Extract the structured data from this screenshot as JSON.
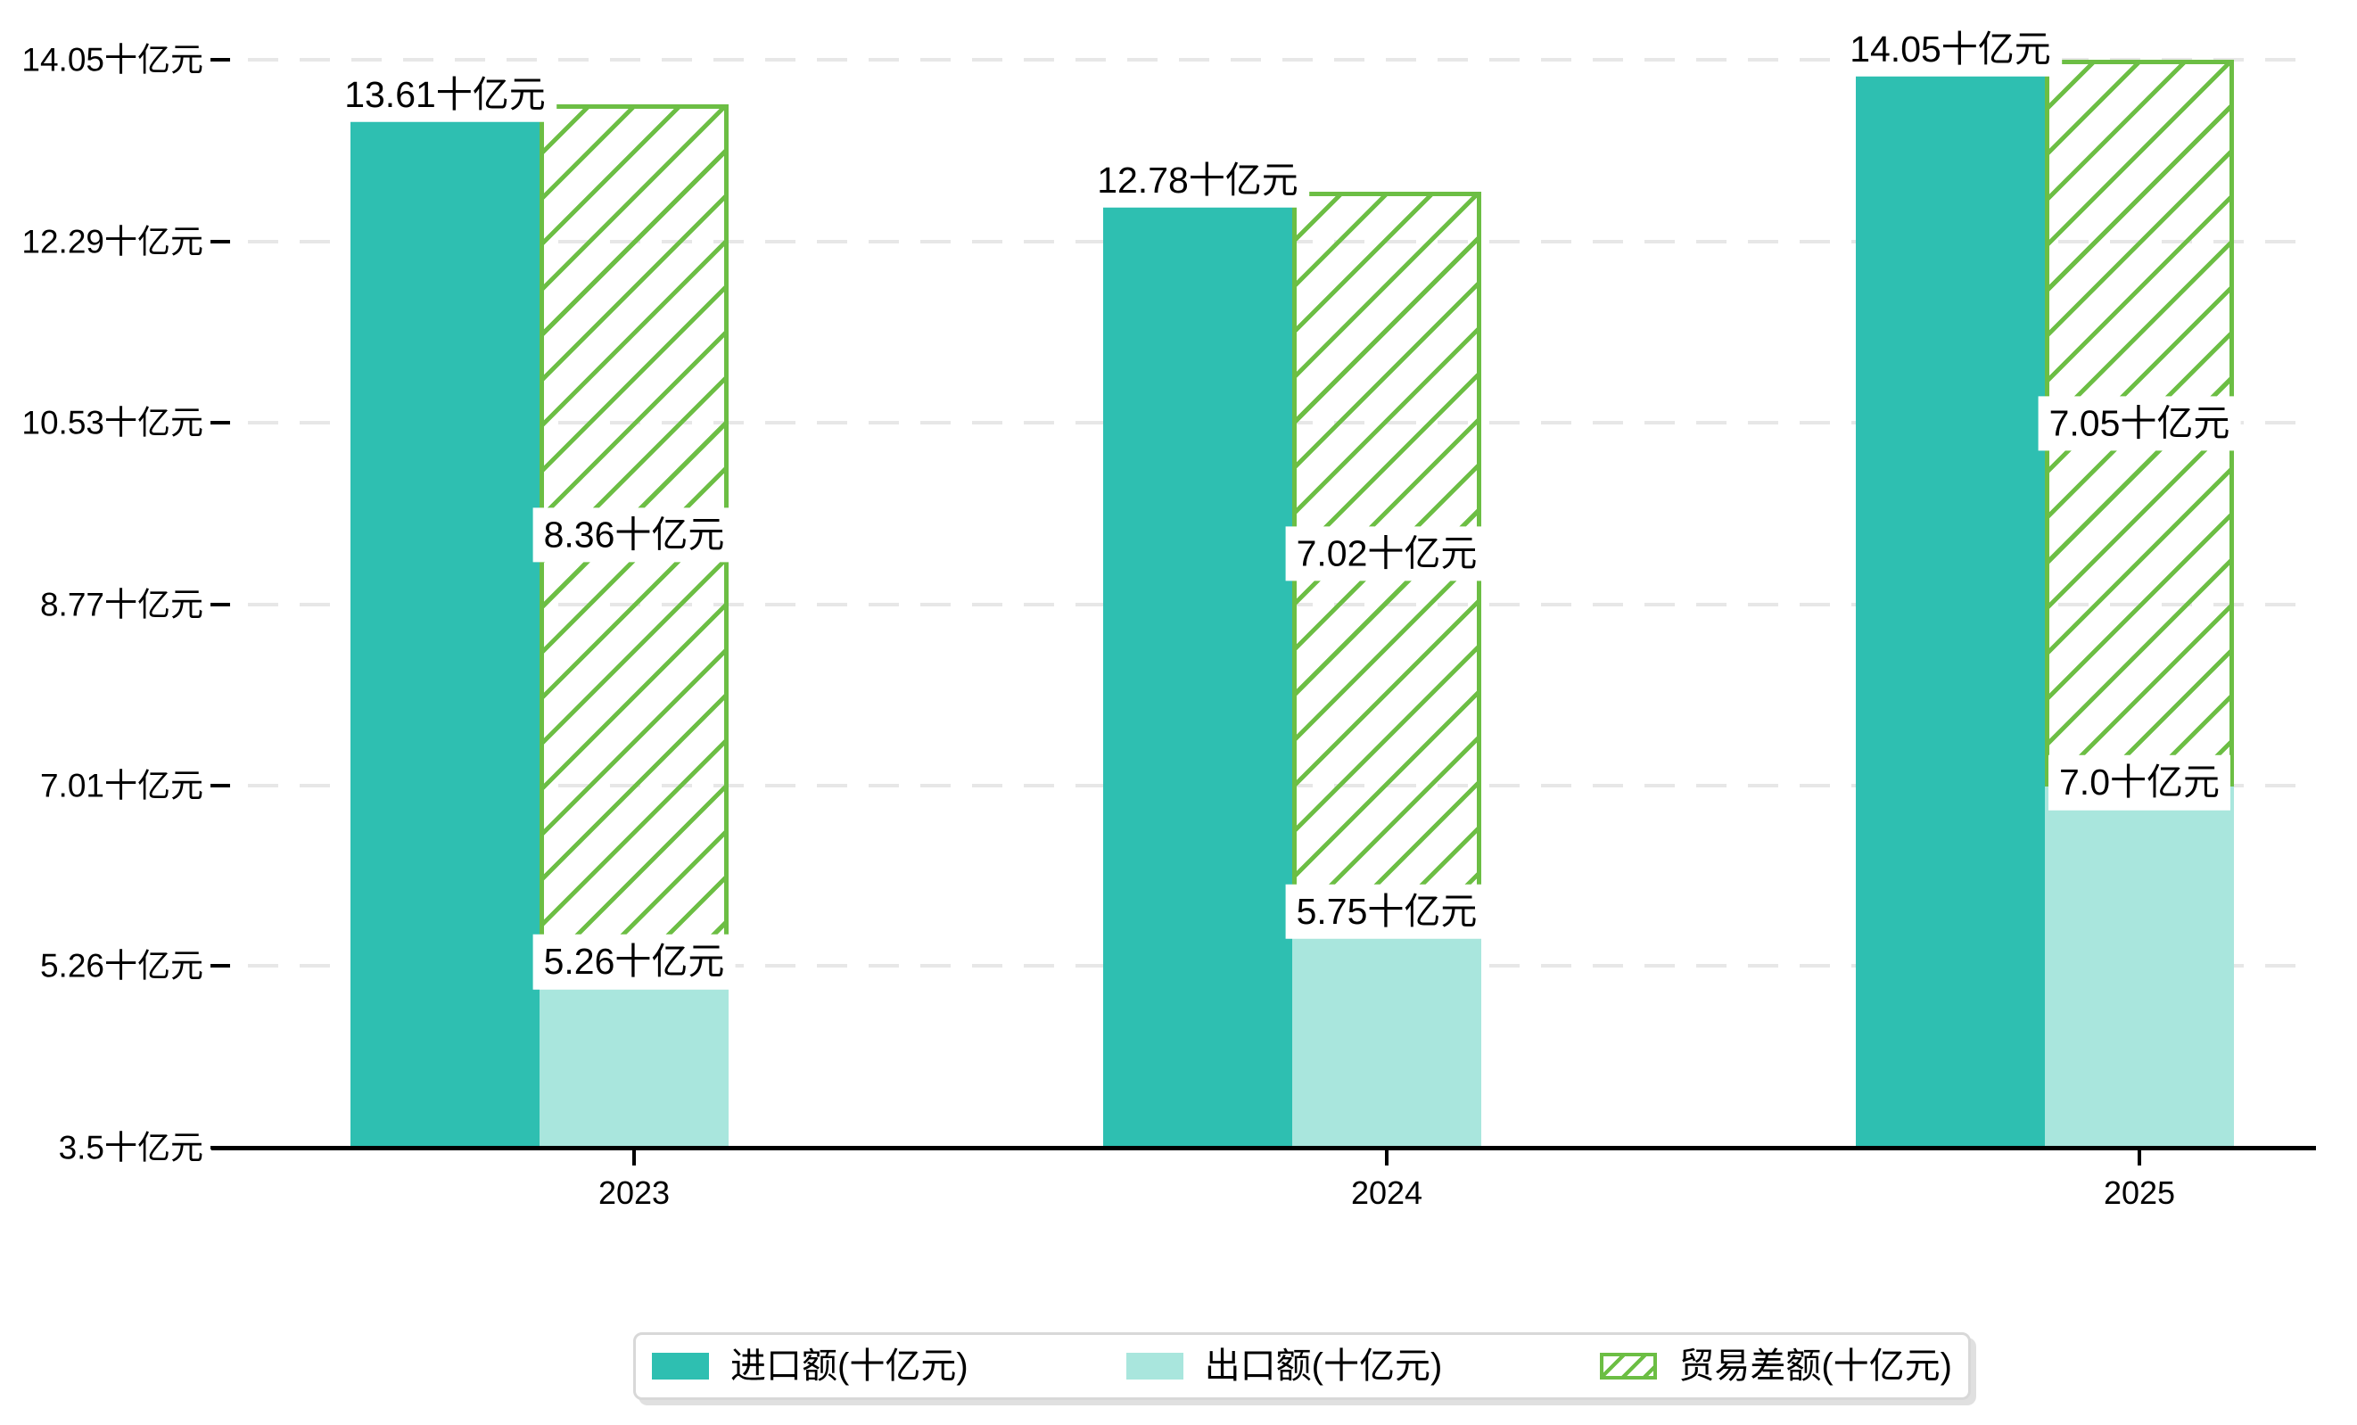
{
  "chart_data": {
    "type": "bar",
    "title": "",
    "categories": [
      "2023",
      "2024",
      "2025"
    ],
    "unit": "十亿元",
    "series": [
      {
        "name": "进口额(十亿元)",
        "role": "import",
        "values": [
          13.61,
          12.78,
          14.05
        ],
        "data_labels": [
          "13.61十亿元",
          "12.78十亿元",
          "14.05十亿元"
        ],
        "color": "#2ebfb1",
        "pattern": "solid"
      },
      {
        "name": "出口额(十亿元)",
        "role": "export",
        "values": [
          5.26,
          5.75,
          7.0
        ],
        "data_labels": [
          "5.26十亿元",
          "5.75十亿元",
          "7.0十亿元"
        ],
        "color": "#a9e6dd",
        "pattern": "solid"
      },
      {
        "name": "贸易差额(十亿元)",
        "role": "trade-balance",
        "values": [
          8.36,
          7.02,
          7.05
        ],
        "data_labels": [
          "8.36十亿元",
          "7.02十亿元",
          "7.05十亿元"
        ],
        "color": "#6cbe44",
        "pattern": "diagonal-hatch",
        "stacking": "floating bar drawn from top of 出口额 bar upward by the balance value"
      }
    ],
    "y_axis": {
      "range": [
        3.5,
        14.05
      ],
      "ticks": [
        {
          "value": 3.5,
          "label": "3.5十亿元"
        },
        {
          "value": 5.26,
          "label": "5.26十亿元"
        },
        {
          "value": 7.01,
          "label": "7.01十亿元"
        },
        {
          "value": 8.77,
          "label": "8.77十亿元"
        },
        {
          "value": 10.53,
          "label": "10.53十亿元"
        },
        {
          "value": 12.29,
          "label": "12.29十亿元"
        },
        {
          "value": 14.05,
          "label": "14.05十亿元"
        }
      ]
    },
    "grid": true,
    "legend_position": "bottom",
    "colors": {
      "grid": "#e7e7e7",
      "axis": "#000000",
      "label_text": "#000000",
      "label_bg": "#ffffff",
      "legend_border": "#d8d8d8"
    }
  }
}
